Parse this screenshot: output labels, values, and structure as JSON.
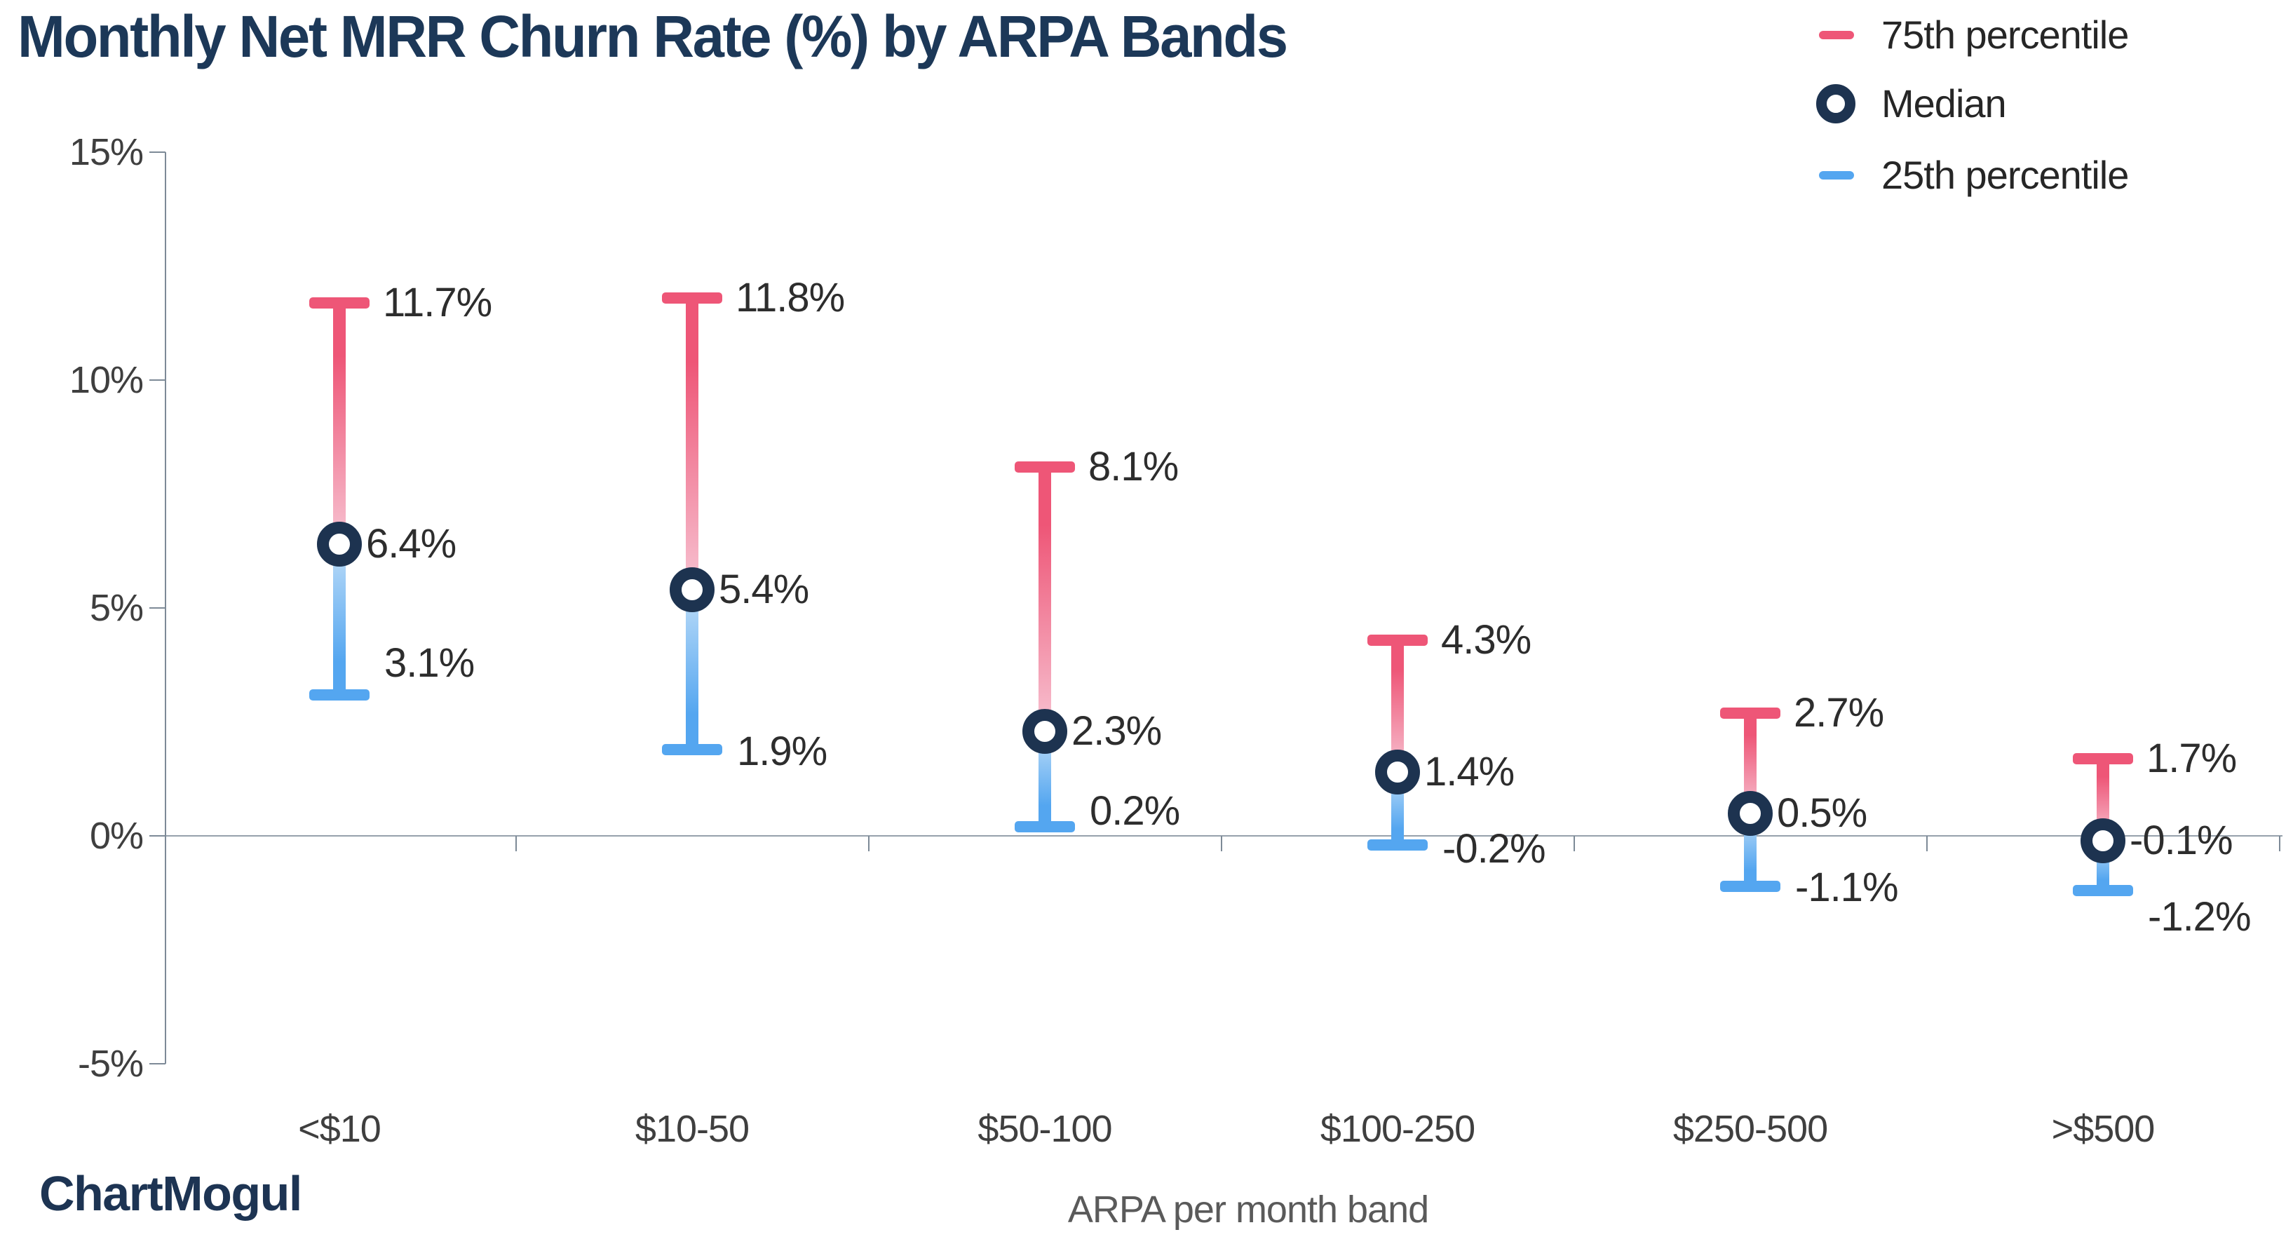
{
  "title": "Monthly Net MRR Churn Rate (%) by ARPA Bands",
  "brand": "ChartMogul",
  "legend": [
    {
      "label": "75th percentile",
      "marker": "dash-icon",
      "color": "#EE5677"
    },
    {
      "label": "Median",
      "marker": "ring-icon",
      "color": "#1D3350"
    },
    {
      "label": "25th percentile",
      "marker": "dash-icon",
      "color": "#54A6F0"
    }
  ],
  "colors": {
    "p75": "#EE5677",
    "p75_fade": "#F7C3D2",
    "p25": "#54A6F0",
    "p25_fade": "#BEDDF8",
    "median_ring": "#1D3350",
    "title": "#1C3858",
    "axis_line": "#7D8A97",
    "grid_line": "#96A1AC",
    "tick_text": "#3F3F3F",
    "data_label_text": "#2D2D2D",
    "axis_title_text": "#5A5A5A",
    "logo": "#1D3453"
  },
  "chart_data": {
    "type": "bar",
    "variant": "percentile-range",
    "title": "Monthly Net MRR Churn Rate (%) by ARPA Bands",
    "categories": [
      "<$10",
      "$10-50",
      "$50-100",
      "$100-250",
      "$250-500",
      ">$500"
    ],
    "series": [
      {
        "name": "75th percentile",
        "values": [
          11.7,
          11.8,
          8.1,
          4.3,
          2.7,
          1.7
        ],
        "labels": [
          "11.7%",
          "11.8%",
          "8.1%",
          "4.3%",
          "2.7%",
          "1.7%"
        ]
      },
      {
        "name": "Median",
        "values": [
          6.4,
          5.4,
          2.3,
          1.4,
          0.5,
          -0.1
        ],
        "labels": [
          "6.4%",
          "5.4%",
          "2.3%",
          "1.4%",
          "0.5%",
          "-0.1%"
        ]
      },
      {
        "name": "25th percentile",
        "values": [
          3.1,
          1.9,
          0.2,
          -0.2,
          -1.1,
          -1.2
        ],
        "labels": [
          "3.1%",
          "1.9%",
          "0.2%",
          "-0.2%",
          "-1.1%",
          "-1.2%"
        ]
      }
    ],
    "xlabel": "ARPA per month band",
    "ylabel": "",
    "yticks": [
      15,
      10,
      5,
      0,
      -5
    ],
    "ytick_labels": [
      "15%",
      "10%",
      "5%",
      "0%",
      "-5%"
    ],
    "ylim": [
      -5,
      15
    ],
    "grid": "horizontal line at 0% only",
    "legend_position": "top-right",
    "layout_hints": {
      "p25_label_dy": [
        -45,
        3,
        -22,
        6,
        2,
        38
      ]
    }
  }
}
